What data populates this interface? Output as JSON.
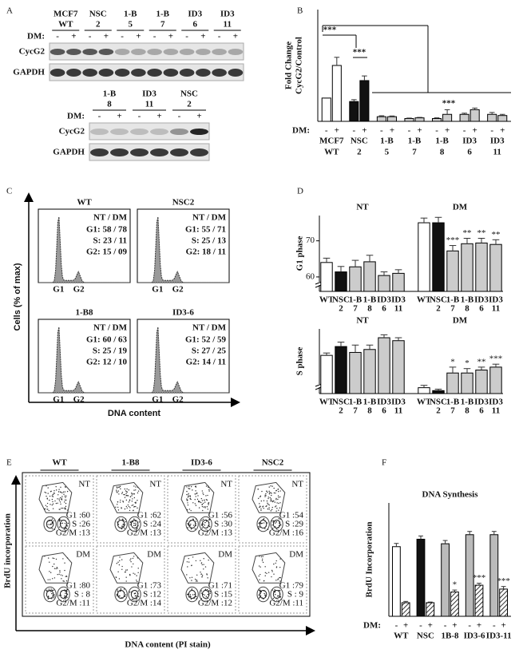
{
  "panel_labels": [
    "A",
    "B",
    "C",
    "D",
    "E",
    "F"
  ],
  "panel_a": {
    "blot_top": {
      "lanes": [
        [
          "MCF7",
          "WT"
        ],
        [
          "NSC",
          "2"
        ],
        [
          "1-B",
          "5"
        ],
        [
          "1-B",
          "7"
        ],
        [
          "ID3",
          "6"
        ],
        [
          "ID3",
          "11"
        ]
      ],
      "dm": "DM:",
      "signs": [
        "-",
        "+"
      ],
      "rows": [
        "CycG2",
        "GAPDH"
      ]
    },
    "blot_bottom": {
      "lanes": [
        [
          "1-B",
          "8"
        ],
        [
          "ID3",
          "11"
        ],
        [
          "NSC",
          "2"
        ]
      ],
      "dm": "DM:",
      "signs": [
        "-",
        "+"
      ],
      "rows": [
        "CycG2",
        "GAPDH"
      ]
    }
  },
  "panel_c": {
    "y_label": "Cells (% of max)",
    "x_label": "DNA content",
    "peaks": [
      "G1",
      "G2"
    ],
    "plots": [
      {
        "title": "WT",
        "header": "NT / DM",
        "lines": [
          "G1: 58 / 78",
          "S: 23 / 11",
          "G2: 15 / 09"
        ]
      },
      {
        "title": "NSC2",
        "header": "NT / DM",
        "lines": [
          "G1: 55 / 71",
          "S: 25 / 13",
          "G2: 18 / 11"
        ]
      },
      {
        "title": "1-B8",
        "header": "NT / DM",
        "lines": [
          "G1: 60 / 63",
          "S: 25 / 19",
          "G2: 12 / 10"
        ]
      },
      {
        "title": "ID3-6",
        "header": "NT / DM",
        "lines": [
          "G1: 52 / 59",
          "S: 27 / 25",
          "G2: 14 / 11"
        ]
      }
    ]
  },
  "panel_e": {
    "y_label": "BrdU incorporation",
    "x_label": "DNA content  (PI stain)",
    "columns": [
      {
        "title": "WT",
        "rows": [
          {
            "condition": "NT",
            "lines": [
              "G1 :60",
              "S :26",
              "G2/M :13"
            ]
          },
          {
            "condition": "DM",
            "lines": [
              "G1 :80",
              "S : 8",
              "G2/M :11"
            ]
          }
        ]
      },
      {
        "title": "1-B8",
        "rows": [
          {
            "condition": "NT",
            "lines": [
              "G1 :62",
              "S :24",
              "G2/M :13"
            ]
          },
          {
            "condition": "DM",
            "lines": [
              "G1 :73",
              "S :12",
              "G2/M :14"
            ]
          }
        ]
      },
      {
        "title": "ID3-6",
        "rows": [
          {
            "condition": "NT",
            "lines": [
              "G1 :56",
              "S :30",
              "G2/M :13"
            ]
          },
          {
            "condition": "DM",
            "lines": [
              "G1 :71",
              "S :15",
              "G2/M :12"
            ]
          }
        ]
      },
      {
        "title": "NSC2",
        "rows": [
          {
            "condition": "NT",
            "lines": [
              "G1 :54",
              "S :29",
              "G2/M :16"
            ]
          },
          {
            "condition": "DM",
            "lines": [
              "G1 :79",
              "S : 9",
              "G2/M :11"
            ]
          }
        ]
      }
    ]
  },
  "chart_data": [
    {
      "type": "bar",
      "y_label": [
        "Fold Change",
        "CycG2/Control"
      ],
      "categories": [
        "MCF7",
        "NSC",
        "1-B",
        "1-B",
        "1-B",
        "ID3",
        "ID3"
      ],
      "category_sublabels": [
        "WT",
        "2",
        "5",
        "7",
        "8",
        "6",
        "11"
      ],
      "condition_label": "DM:",
      "bar_colors": [
        "#ffffff",
        "#111111",
        "#cccccc",
        "#cccccc",
        "#cccccc",
        "#cccccc",
        "#cccccc"
      ],
      "series": [
        {
          "name": "-",
          "values": [
            1.0,
            0.85,
            0.2,
            0.12,
            0.12,
            0.3,
            0.3
          ],
          "errors": [
            0,
            0.08,
            0.04,
            0.02,
            0.03,
            0.05,
            0.08
          ]
        },
        {
          "name": "+",
          "values": [
            2.4,
            1.75,
            0.2,
            0.15,
            0.3,
            0.5,
            0.25
          ],
          "errors": [
            0.35,
            0.2,
            0.03,
            0.02,
            0.2,
            0.07,
            0.05
          ]
        }
      ],
      "ylim": [
        0,
        4.8
      ],
      "significance": [
        "***",
        "***",
        "***"
      ]
    },
    {
      "type": "bar",
      "y_label": "G1 phase",
      "categories": [
        "WT",
        "NSC",
        "1-B",
        "1-B",
        "ID3",
        "ID3"
      ],
      "category_sublabels": [
        null,
        "2",
        "7",
        "8",
        "6",
        "11"
      ],
      "bar_colors": [
        "#ffffff",
        "#111111",
        "#cccccc",
        "#cccccc",
        "#cccccc",
        "#cccccc"
      ],
      "series": [
        {
          "name": "NT",
          "values": [
            64,
            61.4,
            62.8,
            64.2,
            60.4,
            61
          ],
          "errors": [
            1.2,
            1.5,
            1.8,
            1.8,
            1,
            1
          ]
        },
        {
          "name": "DM",
          "values": [
            75,
            75,
            67.2,
            69.2,
            69.4,
            69
          ],
          "errors": [
            1.3,
            1.5,
            1.5,
            1.5,
            1.3,
            1.3
          ],
          "stars": [
            null,
            null,
            "***",
            "**",
            "**",
            "**"
          ]
        }
      ],
      "ylim": [
        56,
        77
      ],
      "yticks": [
        60,
        70
      ],
      "axis_break": true
    },
    {
      "type": "bar",
      "y_label": "S phase",
      "categories": [
        "WT",
        "NSC",
        "1-B",
        "1-B",
        "ID3",
        "ID3"
      ],
      "category_sublabels": [
        null,
        "2",
        "7",
        "8",
        "6",
        "11"
      ],
      "bar_colors": [
        "#ffffff",
        "#111111",
        "#cccccc",
        "#cccccc",
        "#cccccc",
        "#cccccc"
      ],
      "series": [
        {
          "name": "NT",
          "values": [
            25,
            28,
            26,
            27,
            31,
            30
          ],
          "errors": [
            0.8,
            1.5,
            2.5,
            1.5,
            1,
            1
          ]
        },
        {
          "name": "DM",
          "values": [
            14,
            13,
            19,
            19,
            20,
            21
          ],
          "errors": [
            0.8,
            0.5,
            2,
            1.5,
            1,
            1
          ],
          "stars": [
            null,
            null,
            "*",
            "*",
            "**",
            "***"
          ]
        }
      ],
      "ylim": [
        12,
        34
      ],
      "axis_break": true
    },
    {
      "type": "bar",
      "title": "DNA Synthesis",
      "y_label": "BrdU Incorporation",
      "categories": [
        "WT",
        "NSC",
        "1B-8",
        "ID3-6",
        "ID3-11"
      ],
      "condition_label": "DM:",
      "bar_colors": [
        "#ffffff",
        "#111111",
        "#bbbbbb",
        "#bbbbbb",
        "#bbbbbb"
      ],
      "series": [
        {
          "name": "-",
          "values": [
            21.5,
            23.8,
            22.4,
            25.2,
            25.2
          ],
          "errors": [
            1,
            1,
            1,
            1,
            1
          ]
        },
        {
          "name": "+",
          "values": [
            4.2,
            4.2,
            7.5,
            9.6,
            8.4
          ],
          "errors": [
            0.4,
            0.2,
            0.6,
            0.6,
            0.8
          ],
          "hatch": true,
          "stars": [
            null,
            null,
            "*",
            "***",
            "***"
          ]
        }
      ],
      "ylim": [
        0,
        35
      ]
    }
  ]
}
